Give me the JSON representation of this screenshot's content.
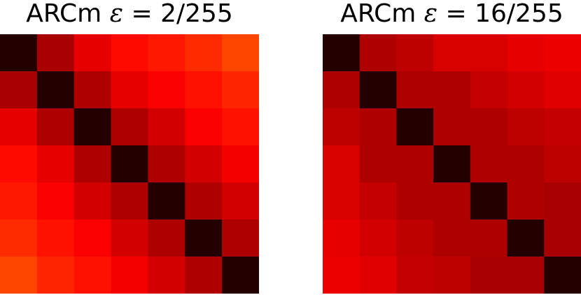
{
  "chart_data": [
    {
      "type": "heatmap",
      "title_prefix": "ARCm ",
      "title_symbol": "ε",
      "title_suffix": " = 2/255",
      "rows": 7,
      "cols": 7,
      "colormap": "hot",
      "matrix": [
        [
          0.05,
          0.24,
          0.33,
          0.38,
          0.4,
          0.43,
          0.47
        ],
        [
          0.24,
          0.05,
          0.25,
          0.33,
          0.36,
          0.39,
          0.42
        ],
        [
          0.33,
          0.25,
          0.05,
          0.25,
          0.3,
          0.36,
          0.39
        ],
        [
          0.38,
          0.33,
          0.25,
          0.05,
          0.25,
          0.3,
          0.35
        ],
        [
          0.4,
          0.36,
          0.3,
          0.25,
          0.05,
          0.25,
          0.3
        ],
        [
          0.43,
          0.39,
          0.36,
          0.3,
          0.25,
          0.05,
          0.25
        ],
        [
          0.47,
          0.42,
          0.39,
          0.35,
          0.3,
          0.25,
          0.05
        ]
      ]
    },
    {
      "type": "heatmap",
      "title_prefix": "ARCm ",
      "title_symbol": "ε",
      "title_suffix": " = 16/255",
      "rows": 7,
      "cols": 7,
      "colormap": "hot",
      "matrix": [
        [
          0.05,
          0.25,
          0.27,
          0.31,
          0.31,
          0.33,
          0.34
        ],
        [
          0.25,
          0.05,
          0.25,
          0.25,
          0.28,
          0.3,
          0.32
        ],
        [
          0.27,
          0.25,
          0.05,
          0.25,
          0.25,
          0.27,
          0.28
        ],
        [
          0.31,
          0.25,
          0.25,
          0.05,
          0.25,
          0.25,
          0.27
        ],
        [
          0.31,
          0.28,
          0.25,
          0.25,
          0.05,
          0.25,
          0.24
        ],
        [
          0.33,
          0.3,
          0.27,
          0.25,
          0.25,
          0.05,
          0.24
        ],
        [
          0.34,
          0.32,
          0.28,
          0.27,
          0.24,
          0.24,
          0.05
        ]
      ]
    }
  ]
}
